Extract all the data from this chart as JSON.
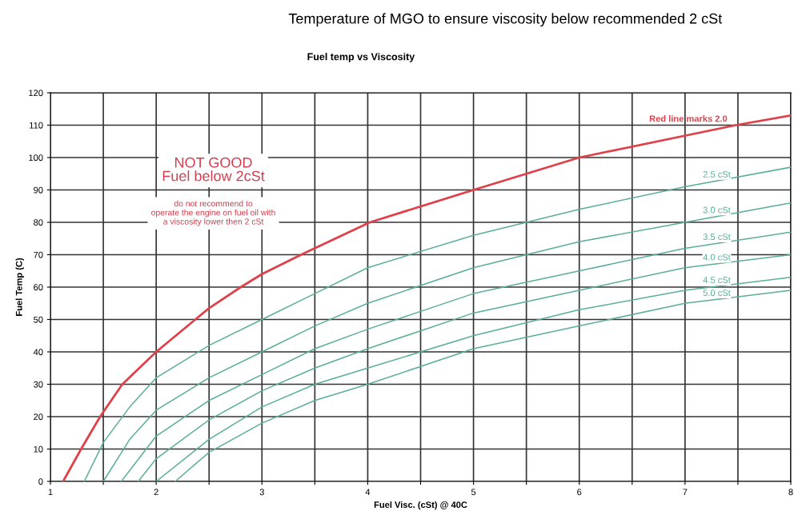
{
  "chart_data": {
    "type": "line",
    "title": "Temperature of MGO to ensure viscosity below recommended 2 cSt",
    "subtitle": "Fuel temp vs Viscosity",
    "xlabel": "Fuel Visc. (cSt) @ 40C",
    "ylabel": "Fuel Temp (C)",
    "series": [
      {
        "name": "Red line marks 2.0",
        "color": "#e0404a",
        "x": [
          1.12,
          1.29,
          1.47,
          1.68,
          2.0,
          2.37,
          2.5,
          2.8,
          3.0,
          3.37,
          4.02,
          5.0,
          6.0,
          7.48,
          8.0
        ],
        "values": [
          0,
          10,
          20,
          30,
          40,
          50,
          53.5,
          60,
          64,
          70,
          80,
          90,
          100,
          110,
          113
        ]
      },
      {
        "name": "2.5 cSt",
        "color": "#5aae9a",
        "x": [
          1.32,
          1.5,
          1.75,
          2.0,
          2.5,
          3.0,
          3.5,
          4.0,
          5.0,
          6.0,
          7.0,
          8.0
        ],
        "values": [
          0,
          12,
          23,
          32,
          42,
          50,
          58,
          66,
          76,
          84,
          91,
          97
        ]
      },
      {
        "name": "3.0 cSt",
        "color": "#5aae9a",
        "x": [
          1.5,
          1.75,
          2.0,
          2.5,
          3.0,
          3.5,
          4.0,
          5.0,
          6.0,
          7.0,
          8.0
        ],
        "values": [
          0,
          13,
          22,
          32,
          40,
          48,
          55,
          66,
          74,
          80,
          86
        ]
      },
      {
        "name": "3.5 cSt",
        "color": "#5aae9a",
        "x": [
          1.67,
          2.0,
          2.5,
          3.0,
          3.5,
          4.0,
          5.0,
          6.0,
          7.0,
          8.0
        ],
        "values": [
          0,
          14,
          25,
          33,
          41,
          47,
          58,
          65,
          72,
          77
        ]
      },
      {
        "name": "4.0 cSt",
        "color": "#5aae9a",
        "x": [
          1.83,
          2.0,
          2.5,
          3.0,
          3.5,
          4.0,
          5.0,
          6.0,
          7.0,
          8.0
        ],
        "values": [
          0,
          7,
          19,
          28,
          35,
          41,
          52,
          59,
          66,
          70
        ]
      },
      {
        "name": "4.5 cSt",
        "color": "#5aae9a",
        "x": [
          2.0,
          2.5,
          3.0,
          3.5,
          4.0,
          5.0,
          6.0,
          7.0,
          8.0
        ],
        "values": [
          0,
          13,
          23,
          30,
          35,
          45,
          53,
          59,
          63
        ]
      },
      {
        "name": "5.0 cSt",
        "color": "#5aae9a",
        "x": [
          2.18,
          2.5,
          3.0,
          3.5,
          4.0,
          5.0,
          6.0,
          7.0,
          8.0
        ],
        "values": [
          0,
          9,
          18,
          25,
          30,
          41,
          48,
          55,
          59
        ]
      }
    ],
    "xlim": [
      1,
      8
    ],
    "xticks": [
      1,
      {
        "value": 1.5,
        "label": null
      },
      2,
      {
        "value": 2.5,
        "label": null
      },
      3,
      {
        "value": 3.5,
        "label": null
      },
      4,
      {
        "value": 4.5,
        "label": null
      },
      5,
      {
        "value": 5.5,
        "label": null
      },
      6,
      {
        "value": 6.5,
        "label": null
      },
      7,
      {
        "value": 7.5,
        "label": null
      },
      8
    ],
    "ylim": [
      0,
      120
    ],
    "yticks": [
      0,
      10,
      20,
      30,
      40,
      50,
      60,
      70,
      80,
      90,
      100,
      110,
      120
    ],
    "grid": true,
    "legend": false,
    "marker": "none",
    "line_style": "solid",
    "annotations": [
      "NOT GOOD\nFuel below 2cSt",
      "do not recommend to\noperate the engine on fuel oil with\na viscosity lower then 2 cSt"
    ]
  }
}
